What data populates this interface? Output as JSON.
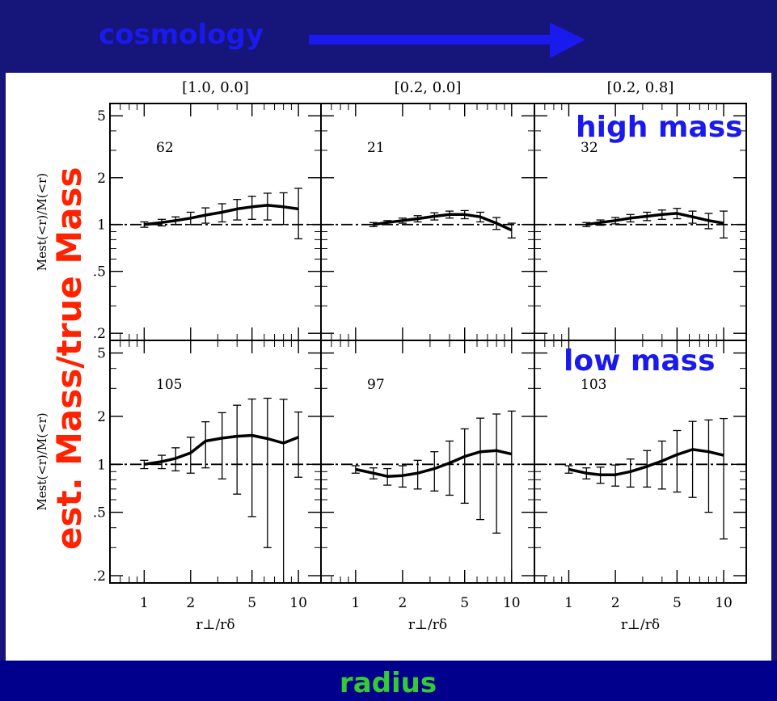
{
  "slide": {
    "cosmology_label": "cosmology",
    "radius_label": "radius",
    "ylabel_overlay": "est. Mass/true Mass",
    "high_mass_label": "high mass",
    "low_mass_label": "low mass",
    "text_blue": "#1a1aee",
    "text_red": "#ff2200",
    "text_green": "#33cc33",
    "background": "#15157a"
  },
  "chart_data": {
    "type": "line",
    "layout": "2x3 grid",
    "y_scale": "log",
    "x_scale": "log",
    "ylim": [
      0.18,
      6
    ],
    "xlim": [
      0.6,
      14
    ],
    "x_ticks": [
      1,
      2,
      5,
      10
    ],
    "x_tick_labels": [
      "1",
      "2",
      "5",
      "10"
    ],
    "y_ticks": [
      0.2,
      0.5,
      1,
      2,
      5
    ],
    "y_tick_labels": [
      ".2",
      ".5",
      "1",
      "2",
      "5"
    ],
    "xlabel": "r⊥/rδ",
    "ylabel": "Mest(<r)/M(<r)",
    "reference_line_y": 1,
    "column_titles": [
      "[1.0, 0.0]",
      "[0.2, 0.0]",
      "[0.2, 0.8]"
    ],
    "panels": [
      {
        "row": 0,
        "col": 0,
        "count": "62",
        "x": [
          1.0,
          1.3,
          1.6,
          2.0,
          2.5,
          3.2,
          4.0,
          5.0,
          6.3,
          8.0,
          10.0
        ],
        "y": [
          1.0,
          1.03,
          1.06,
          1.1,
          1.15,
          1.2,
          1.26,
          1.3,
          1.33,
          1.3,
          1.26
        ],
        "err": [
          0.04,
          0.05,
          0.06,
          0.1,
          0.13,
          0.16,
          0.19,
          0.22,
          0.26,
          0.3,
          0.45
        ]
      },
      {
        "row": 0,
        "col": 1,
        "count": "21",
        "x": [
          1.3,
          1.6,
          2.0,
          2.5,
          3.2,
          4.0,
          5.0,
          6.3,
          8.0,
          10.0
        ],
        "y": [
          1.0,
          1.03,
          1.06,
          1.09,
          1.13,
          1.16,
          1.16,
          1.12,
          1.02,
          0.92
        ],
        "err": [
          0.03,
          0.03,
          0.04,
          0.05,
          0.06,
          0.06,
          0.07,
          0.08,
          0.09,
          0.1
        ]
      },
      {
        "row": 0,
        "col": 2,
        "count": "32",
        "x": [
          1.3,
          1.6,
          2.0,
          2.5,
          3.2,
          4.0,
          5.0,
          6.3,
          8.0,
          10.0
        ],
        "y": [
          1.0,
          1.03,
          1.06,
          1.1,
          1.13,
          1.16,
          1.18,
          1.12,
          1.06,
          1.02
        ],
        "err": [
          0.03,
          0.04,
          0.05,
          0.06,
          0.07,
          0.08,
          0.09,
          0.1,
          0.12,
          0.2
        ]
      },
      {
        "row": 1,
        "col": 0,
        "count": "105",
        "x": [
          1.0,
          1.3,
          1.6,
          2.0,
          2.5,
          3.2,
          4.0,
          5.0,
          6.3,
          8.0,
          10.0
        ],
        "y": [
          1.0,
          1.04,
          1.09,
          1.18,
          1.4,
          1.46,
          1.5,
          1.52,
          1.45,
          1.36,
          1.48
        ],
        "err": [
          0.06,
          0.1,
          0.18,
          0.3,
          0.45,
          0.65,
          0.85,
          1.05,
          1.15,
          1.2,
          0.65
        ]
      },
      {
        "row": 1,
        "col": 1,
        "count": "97",
        "x": [
          1.0,
          1.3,
          1.6,
          2.0,
          2.5,
          3.2,
          4.0,
          5.0,
          6.3,
          8.0,
          10.0
        ],
        "y": [
          0.93,
          0.88,
          0.84,
          0.85,
          0.88,
          0.94,
          1.02,
          1.12,
          1.2,
          1.22,
          1.16
        ],
        "err": [
          0.05,
          0.07,
          0.1,
          0.13,
          0.18,
          0.26,
          0.38,
          0.55,
          0.75,
          0.85,
          1.0
        ]
      },
      {
        "row": 1,
        "col": 2,
        "count": "103",
        "x": [
          1.0,
          1.3,
          1.6,
          2.0,
          2.5,
          3.2,
          4.0,
          5.0,
          6.3,
          8.0,
          10.0
        ],
        "y": [
          0.93,
          0.88,
          0.86,
          0.86,
          0.9,
          0.97,
          1.05,
          1.15,
          1.24,
          1.2,
          1.14
        ],
        "err": [
          0.05,
          0.07,
          0.1,
          0.13,
          0.18,
          0.25,
          0.35,
          0.48,
          0.62,
          0.7,
          0.8
        ]
      }
    ]
  }
}
